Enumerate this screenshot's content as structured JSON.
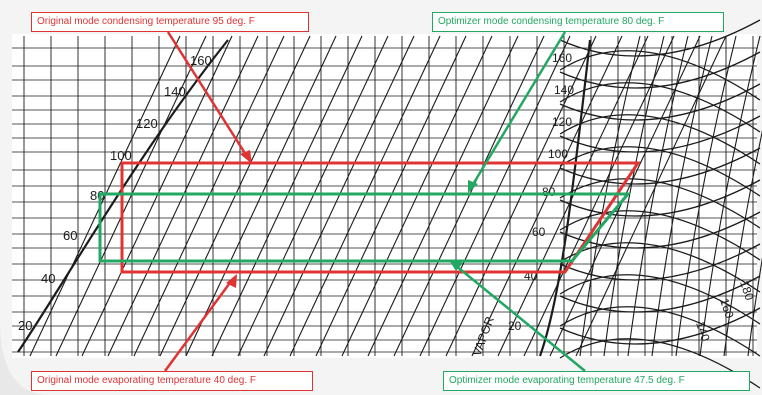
{
  "callouts": {
    "orig_condensing": "Original mode condensing temperature 95 deg. F",
    "opt_condensing": "Optimizer mode condensing temperature 80 deg. F",
    "orig_evaporating": "Original mode evaporating temperature 40 deg. F",
    "opt_evaporating": "Optimizer mode evaporating temperature 47.5 deg. F"
  },
  "labels": {
    "left": [
      "160",
      "140",
      "120",
      "100",
      "80",
      "60",
      "40",
      "20"
    ],
    "right": [
      "160",
      "140",
      "120",
      "100",
      "80",
      "60",
      "40",
      "20"
    ],
    "bottom_right": [
      "180",
      "160",
      "140"
    ],
    "vapor": "VAPOR"
  },
  "colors": {
    "original": "#e03434",
    "optimizer": "#22a862",
    "grid": "#1c1c1c"
  }
}
